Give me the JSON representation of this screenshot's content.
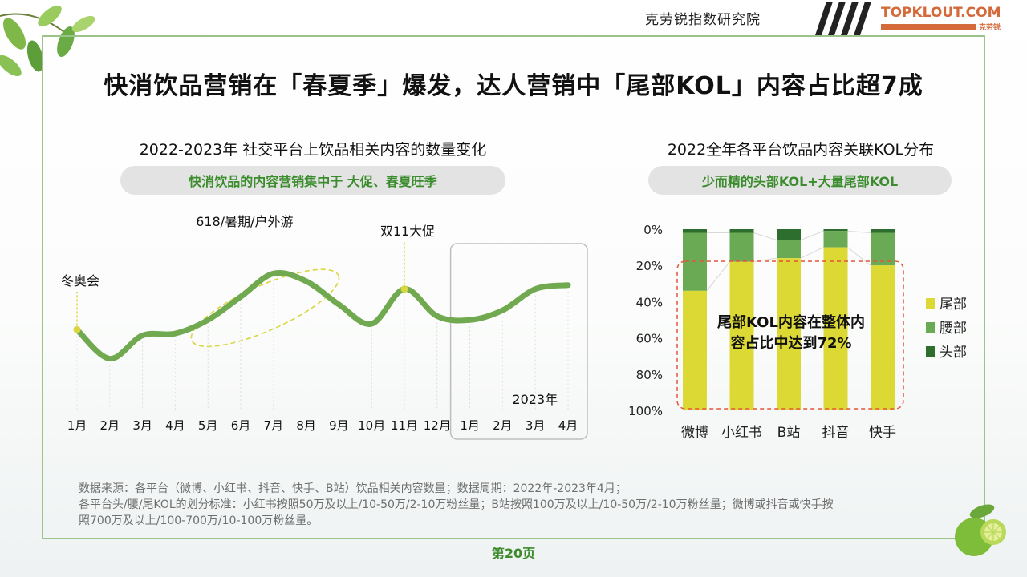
{
  "header": {
    "institute": "克劳锐指数研究院",
    "brand_name": "TOPKLOUT.COM",
    "brand_cn": "克劳锐"
  },
  "main_title": "快消饮品营销在「春夏季」爆发，达人营销中「尾部KOL」内容占比超7成",
  "left_panel": {
    "title": "2022-2023年 社交平台上饮品相关内容的数量变化",
    "pill": "快消饮品的内容营销集中于 大促、春夏旺季"
  },
  "right_panel": {
    "title": "2022全年各平台饮品内容关联KOL分布",
    "pill": "少而精的头部KOL+大量尾部KOL"
  },
  "chart_data": [
    {
      "type": "line",
      "x": [
        "1月",
        "2月",
        "3月",
        "4月",
        "5月",
        "6月",
        "7月",
        "8月",
        "9月",
        "10月",
        "11月",
        "12月",
        "1月",
        "2月",
        "3月",
        "4月"
      ],
      "values": [
        45,
        30,
        42,
        43,
        50,
        62,
        74,
        70,
        58,
        48,
        66,
        52,
        50,
        55,
        66,
        68
      ],
      "annotations": [
        {
          "text": "冬奥会",
          "x_index": 0
        },
        {
          "text": "618/暑期/户外游",
          "x_index": 6
        },
        {
          "text": "双11大促",
          "x_index": 10
        },
        {
          "text": "2023年",
          "x_index": 13
        }
      ],
      "color": "#70a94f",
      "grid": false
    },
    {
      "type": "bar",
      "stacked": true,
      "categories": [
        "微博",
        "小红书",
        "B站",
        "抖音",
        "快手"
      ],
      "yticks": [
        "0%",
        "20%",
        "40%",
        "60%",
        "80%",
        "100%"
      ],
      "ylim": [
        0,
        100
      ],
      "series": [
        {
          "name": "尾部",
          "color": "#dcd834",
          "values": [
            66,
            82,
            84,
            90,
            80
          ]
        },
        {
          "name": "腰部",
          "color": "#6aaa55",
          "values": [
            32,
            16,
            10,
            9,
            18
          ]
        },
        {
          "name": "头部",
          "color": "#2d6e2e",
          "values": [
            2,
            2,
            6,
            1,
            2
          ]
        }
      ],
      "annotation": "尾部KOL内容在整体内容占比中达到72%",
      "annotation_line1": "尾部KOL内容在整体内",
      "annotation_line2": "容占比中达到72%"
    }
  ],
  "footnote": {
    "line1": "数据来源：各平台（微博、小红书、抖音、快手、B站）饮品相关内容数量；数据周期：2022年-2023年4月；",
    "line2": "各平台头/腰/尾KOL的划分标准：小红书按照50万及以上/10-50万/2-10万粉丝量；B站按照100万及以上/10-50万/2-10万粉丝量；微博或抖音或快手按",
    "line3": "照700万及以上/100-700万/10-100万粉丝量。"
  },
  "page_number": "第20页"
}
